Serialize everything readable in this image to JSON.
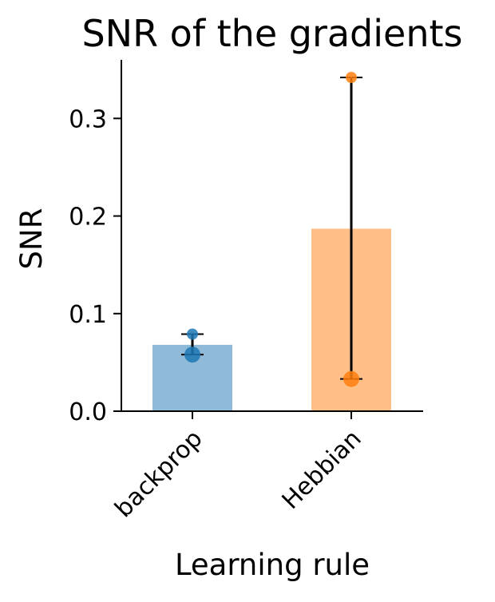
{
  "chart_data": {
    "type": "bar",
    "title": "SNR of the gradients",
    "xlabel": "Learning rule",
    "ylabel": "SNR",
    "categories": [
      "backprop",
      "Hebbian"
    ],
    "values": [
      0.068,
      0.187
    ],
    "points": [
      [
        0.058,
        0.079
      ],
      [
        0.033,
        0.342
      ]
    ],
    "colors": [
      "#1f77b4",
      "#ff7f0e"
    ],
    "ylim": [
      0,
      0.36
    ],
    "yticks": [
      0.0,
      0.1,
      0.2,
      0.3
    ],
    "ytick_labels": [
      "0.0",
      "0.1",
      "0.2",
      "0.3"
    ],
    "grid": false,
    "legend": "none"
  }
}
